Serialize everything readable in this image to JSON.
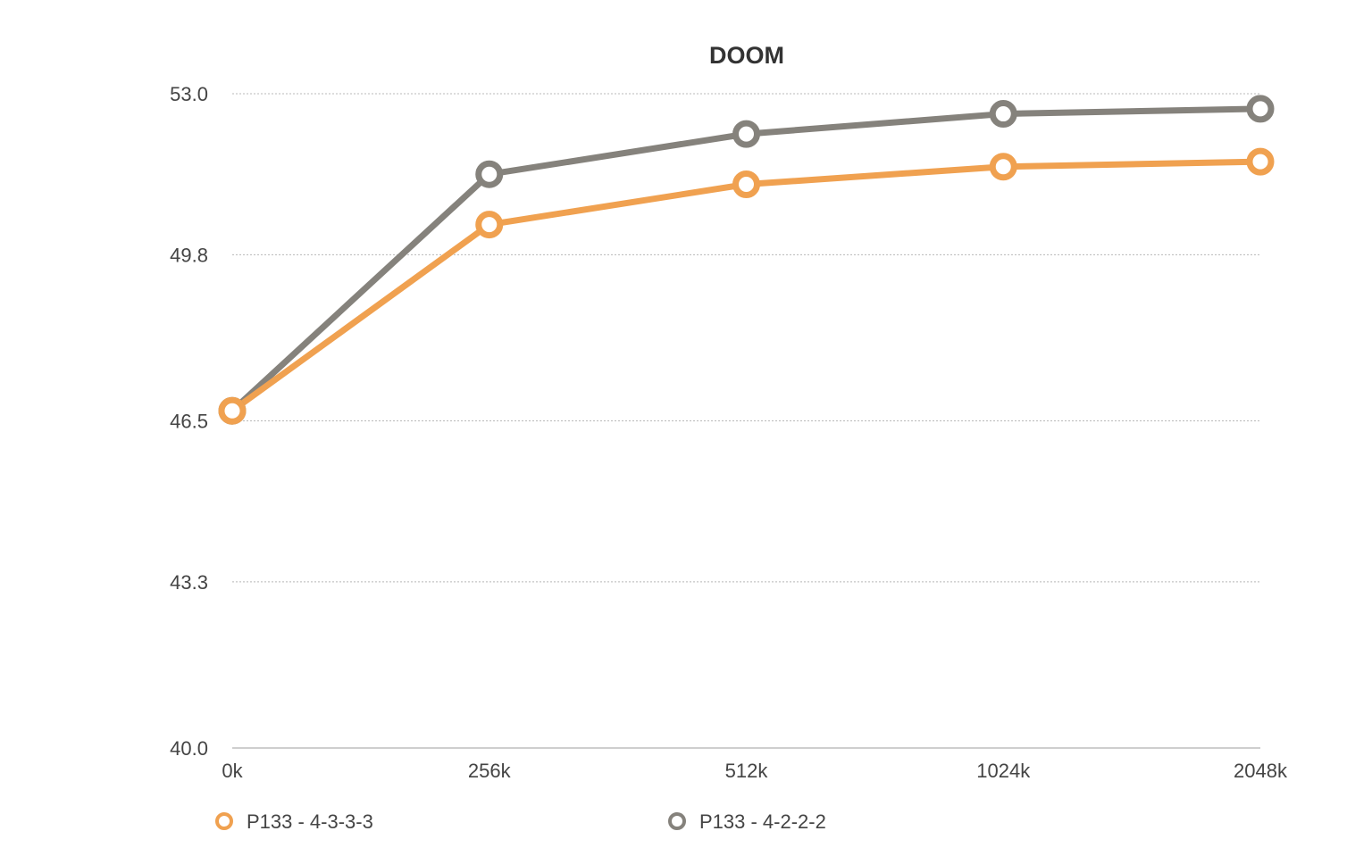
{
  "chart_data": {
    "type": "line",
    "title": "DOOM",
    "xlabel": "",
    "ylabel": "",
    "categories": [
      "0k",
      "256k",
      "512k",
      "1024k",
      "2048k"
    ],
    "y_ticks": [
      "40.0",
      "43.3",
      "46.5",
      "49.8",
      "53.0"
    ],
    "ylim": [
      40.0,
      53.0
    ],
    "grid": true,
    "legend_position": "bottom",
    "series": [
      {
        "name": "P133 - 4-3-3-3",
        "color": "#f0a150",
        "values": [
          46.7,
          50.4,
          51.2,
          51.55,
          51.65
        ]
      },
      {
        "name": "P133 - 4-2-2-2",
        "color": "#85827c",
        "values": [
          46.7,
          51.4,
          52.2,
          52.6,
          52.7
        ]
      }
    ]
  }
}
